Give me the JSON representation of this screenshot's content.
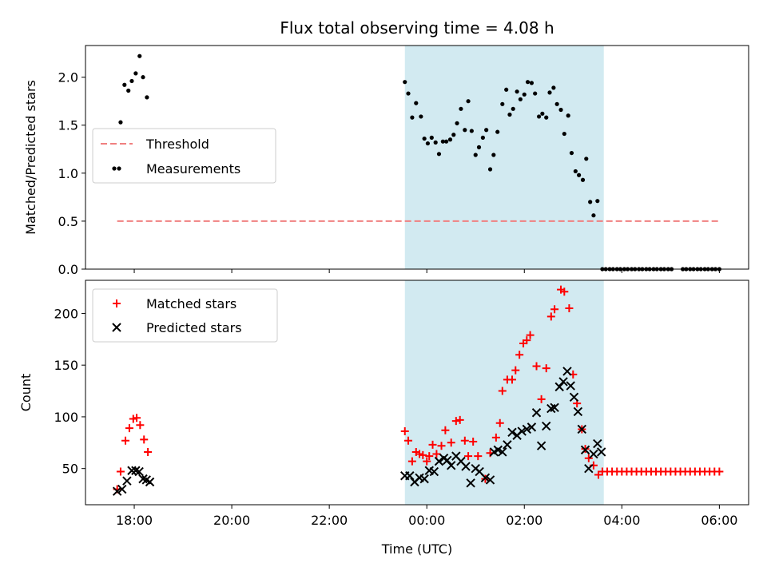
{
  "chart_data": {
    "title": "Flux total observing time = 4.08 h",
    "xlabel": "Time (UTC)",
    "x_unit": "hours since 00:00 UTC (negative = previous day)",
    "xlim": [
      -7.0,
      6.6
    ],
    "xticks": [
      {
        "value": -6,
        "label": "18:00"
      },
      {
        "value": -4,
        "label": "20:00"
      },
      {
        "value": -2,
        "label": "22:00"
      },
      {
        "value": 0,
        "label": "00:00"
      },
      {
        "value": 2,
        "label": "02:00"
      },
      {
        "value": 4,
        "label": "04:00"
      },
      {
        "value": 6,
        "label": "06:00"
      }
    ],
    "observing_window": {
      "start": -0.45,
      "end": 3.63,
      "color": "#add8e6"
    },
    "colors": {
      "threshold": "#f08080",
      "measurements": "#000000",
      "matched": "#ff0000",
      "predicted": "#000000",
      "window": "#add8e6"
    },
    "panels": [
      {
        "type": "scatter",
        "ylabel": "Matched/Predicted stars",
        "ylim": [
          0,
          2.33
        ],
        "yticks": [
          "0.0",
          "0.5",
          "1.0",
          "1.5",
          "2.0"
        ],
        "legend": {
          "placement": "center-left",
          "entries": [
            "Threshold",
            "Measurements"
          ]
        },
        "threshold": {
          "name": "Threshold",
          "value": 0.5,
          "x_range": [
            -6.35,
            6.0
          ]
        },
        "measurements": {
          "name": "Measurements",
          "points": [
            [
              -6.28,
              1.53
            ],
            [
              -6.2,
              1.92
            ],
            [
              -6.12,
              1.86
            ],
            [
              -6.05,
              1.96
            ],
            [
              -5.97,
              2.04
            ],
            [
              -5.89,
              2.22
            ],
            [
              -5.82,
              2.0
            ],
            [
              -5.74,
              1.79
            ],
            [
              -0.45,
              1.95
            ],
            [
              -0.38,
              1.83
            ],
            [
              -0.3,
              1.58
            ],
            [
              -0.22,
              1.73
            ],
            [
              -0.12,
              1.59
            ],
            [
              -0.05,
              1.36
            ],
            [
              0.02,
              1.31
            ],
            [
              0.1,
              1.37
            ],
            [
              0.18,
              1.32
            ],
            [
              0.25,
              1.2
            ],
            [
              0.33,
              1.33
            ],
            [
              0.4,
              1.33
            ],
            [
              0.48,
              1.35
            ],
            [
              0.55,
              1.4
            ],
            [
              0.62,
              1.52
            ],
            [
              0.7,
              1.67
            ],
            [
              0.78,
              1.45
            ],
            [
              0.85,
              1.75
            ],
            [
              0.92,
              1.44
            ],
            [
              1.0,
              1.19
            ],
            [
              1.07,
              1.27
            ],
            [
              1.15,
              1.37
            ],
            [
              1.22,
              1.45
            ],
            [
              1.3,
              1.04
            ],
            [
              1.37,
              1.19
            ],
            [
              1.45,
              1.43
            ],
            [
              1.55,
              1.72
            ],
            [
              1.63,
              1.87
            ],
            [
              1.7,
              1.61
            ],
            [
              1.77,
              1.67
            ],
            [
              1.85,
              1.85
            ],
            [
              1.92,
              1.77
            ],
            [
              2.0,
              1.82
            ],
            [
              2.07,
              1.95
            ],
            [
              2.15,
              1.94
            ],
            [
              2.22,
              1.83
            ],
            [
              2.3,
              1.59
            ],
            [
              2.37,
              1.62
            ],
            [
              2.45,
              1.58
            ],
            [
              2.52,
              1.84
            ],
            [
              2.6,
              1.89
            ],
            [
              2.67,
              1.72
            ],
            [
              2.75,
              1.66
            ],
            [
              2.82,
              1.41
            ],
            [
              2.9,
              1.6
            ],
            [
              2.97,
              1.21
            ],
            [
              3.05,
              1.02
            ],
            [
              3.12,
              0.98
            ],
            [
              3.2,
              0.93
            ],
            [
              3.27,
              1.15
            ],
            [
              3.35,
              0.7
            ],
            [
              3.42,
              0.56
            ],
            [
              3.5,
              0.71
            ],
            [
              3.6,
              0
            ],
            [
              3.67,
              0
            ],
            [
              3.75,
              0
            ],
            [
              3.82,
              0
            ],
            [
              3.9,
              0
            ],
            [
              3.97,
              0
            ],
            [
              4.05,
              0
            ],
            [
              4.12,
              0
            ],
            [
              4.2,
              0
            ],
            [
              4.27,
              0
            ],
            [
              4.35,
              0
            ],
            [
              4.42,
              0
            ],
            [
              4.5,
              0
            ],
            [
              4.57,
              0
            ],
            [
              4.65,
              0
            ],
            [
              4.72,
              0
            ],
            [
              4.8,
              0
            ],
            [
              4.87,
              0
            ],
            [
              4.95,
              0
            ],
            [
              5.02,
              0
            ],
            [
              5.25,
              0
            ],
            [
              5.32,
              0
            ],
            [
              5.4,
              0
            ],
            [
              5.47,
              0
            ],
            [
              5.55,
              0
            ],
            [
              5.62,
              0
            ],
            [
              5.7,
              0
            ],
            [
              5.77,
              0
            ],
            [
              5.85,
              0
            ],
            [
              5.92,
              0
            ],
            [
              6.0,
              0
            ]
          ]
        }
      },
      {
        "type": "scatter",
        "ylabel": "Count",
        "ylim": [
          15,
          232
        ],
        "yticks": [
          "50",
          "100",
          "150",
          "200"
        ],
        "legend": {
          "placement": "top-left",
          "entries": [
            "Matched stars",
            "Predicted stars"
          ]
        },
        "matched": {
          "name": "Matched stars",
          "points": [
            [
              -6.35,
              30
            ],
            [
              -6.28,
              47
            ],
            [
              -6.18,
              77
            ],
            [
              -6.1,
              89
            ],
            [
              -6.02,
              98
            ],
            [
              -5.95,
              99
            ],
            [
              -5.88,
              92
            ],
            [
              -5.8,
              78
            ],
            [
              -5.72,
              66
            ],
            [
              -0.45,
              86
            ],
            [
              -0.38,
              77
            ],
            [
              -0.3,
              57
            ],
            [
              -0.22,
              66
            ],
            [
              -0.15,
              64
            ],
            [
              -0.08,
              63
            ],
            [
              0.0,
              57
            ],
            [
              0.05,
              62
            ],
            [
              0.12,
              73
            ],
            [
              0.2,
              64
            ],
            [
              0.3,
              72
            ],
            [
              0.38,
              87
            ],
            [
              0.5,
              75
            ],
            [
              0.6,
              96
            ],
            [
              0.68,
              97
            ],
            [
              0.78,
              77
            ],
            [
              0.85,
              62
            ],
            [
              0.95,
              76
            ],
            [
              1.05,
              62
            ],
            [
              1.2,
              40
            ],
            [
              1.3,
              65
            ],
            [
              1.42,
              80
            ],
            [
              1.5,
              94
            ],
            [
              1.55,
              125
            ],
            [
              1.65,
              136
            ],
            [
              1.75,
              136
            ],
            [
              1.82,
              145
            ],
            [
              1.9,
              160
            ],
            [
              1.98,
              171
            ],
            [
              2.05,
              174
            ],
            [
              2.12,
              179
            ],
            [
              2.25,
              149
            ],
            [
              2.35,
              117
            ],
            [
              2.45,
              147
            ],
            [
              2.55,
              197
            ],
            [
              2.62,
              204
            ],
            [
              2.75,
              223
            ],
            [
              2.82,
              221
            ],
            [
              2.92,
              205
            ],
            [
              3.0,
              141
            ],
            [
              3.08,
              113
            ],
            [
              3.18,
              88
            ],
            [
              3.25,
              69
            ],
            [
              3.32,
              60
            ],
            [
              3.42,
              53
            ],
            [
              3.52,
              44
            ],
            [
              3.6,
              47
            ],
            [
              3.7,
              47
            ],
            [
              3.8,
              47
            ],
            [
              3.9,
              47
            ],
            [
              4.0,
              47
            ],
            [
              4.1,
              47
            ],
            [
              4.2,
              47
            ],
            [
              4.3,
              47
            ],
            [
              4.4,
              47
            ],
            [
              4.5,
              47
            ],
            [
              4.6,
              47
            ],
            [
              4.7,
              47
            ],
            [
              4.8,
              47
            ],
            [
              4.9,
              47
            ],
            [
              5.0,
              47
            ],
            [
              5.1,
              47
            ],
            [
              5.2,
              47
            ],
            [
              5.3,
              47
            ],
            [
              5.4,
              47
            ],
            [
              5.5,
              47
            ],
            [
              5.6,
              47
            ],
            [
              5.7,
              47
            ],
            [
              5.8,
              47
            ],
            [
              5.9,
              47
            ],
            [
              6.0,
              47
            ]
          ]
        },
        "predicted": {
          "name": "Predicted stars",
          "points": [
            [
              -6.35,
              28
            ],
            [
              -6.25,
              30
            ],
            [
              -6.15,
              38
            ],
            [
              -6.05,
              48
            ],
            [
              -5.97,
              48
            ],
            [
              -5.9,
              47
            ],
            [
              -5.82,
              40
            ],
            [
              -5.75,
              39
            ],
            [
              -5.68,
              37
            ],
            [
              -0.45,
              43
            ],
            [
              -0.35,
              43
            ],
            [
              -0.25,
              37
            ],
            [
              -0.15,
              41
            ],
            [
              -0.05,
              40
            ],
            [
              0.05,
              48
            ],
            [
              0.15,
              47
            ],
            [
              0.25,
              57
            ],
            [
              0.35,
              60
            ],
            [
              0.42,
              58
            ],
            [
              0.5,
              53
            ],
            [
              0.6,
              62
            ],
            [
              0.7,
              57
            ],
            [
              0.8,
              52
            ],
            [
              0.9,
              36
            ],
            [
              1.0,
              50
            ],
            [
              1.08,
              47
            ],
            [
              1.2,
              41
            ],
            [
              1.3,
              39
            ],
            [
              1.38,
              66
            ],
            [
              1.46,
              68
            ],
            [
              1.55,
              66
            ],
            [
              1.65,
              73
            ],
            [
              1.75,
              85
            ],
            [
              1.85,
              82
            ],
            [
              1.95,
              86
            ],
            [
              2.05,
              88
            ],
            [
              2.15,
              90
            ],
            [
              2.25,
              104
            ],
            [
              2.35,
              72
            ],
            [
              2.45,
              91
            ],
            [
              2.55,
              108
            ],
            [
              2.62,
              109
            ],
            [
              2.72,
              129
            ],
            [
              2.8,
              134
            ],
            [
              2.88,
              144
            ],
            [
              2.95,
              130
            ],
            [
              3.02,
              119
            ],
            [
              3.1,
              105
            ],
            [
              3.18,
              88
            ],
            [
              3.25,
              68
            ],
            [
              3.32,
              50
            ],
            [
              3.42,
              64
            ],
            [
              3.5,
              74
            ],
            [
              3.58,
              66
            ]
          ]
        }
      }
    ]
  }
}
